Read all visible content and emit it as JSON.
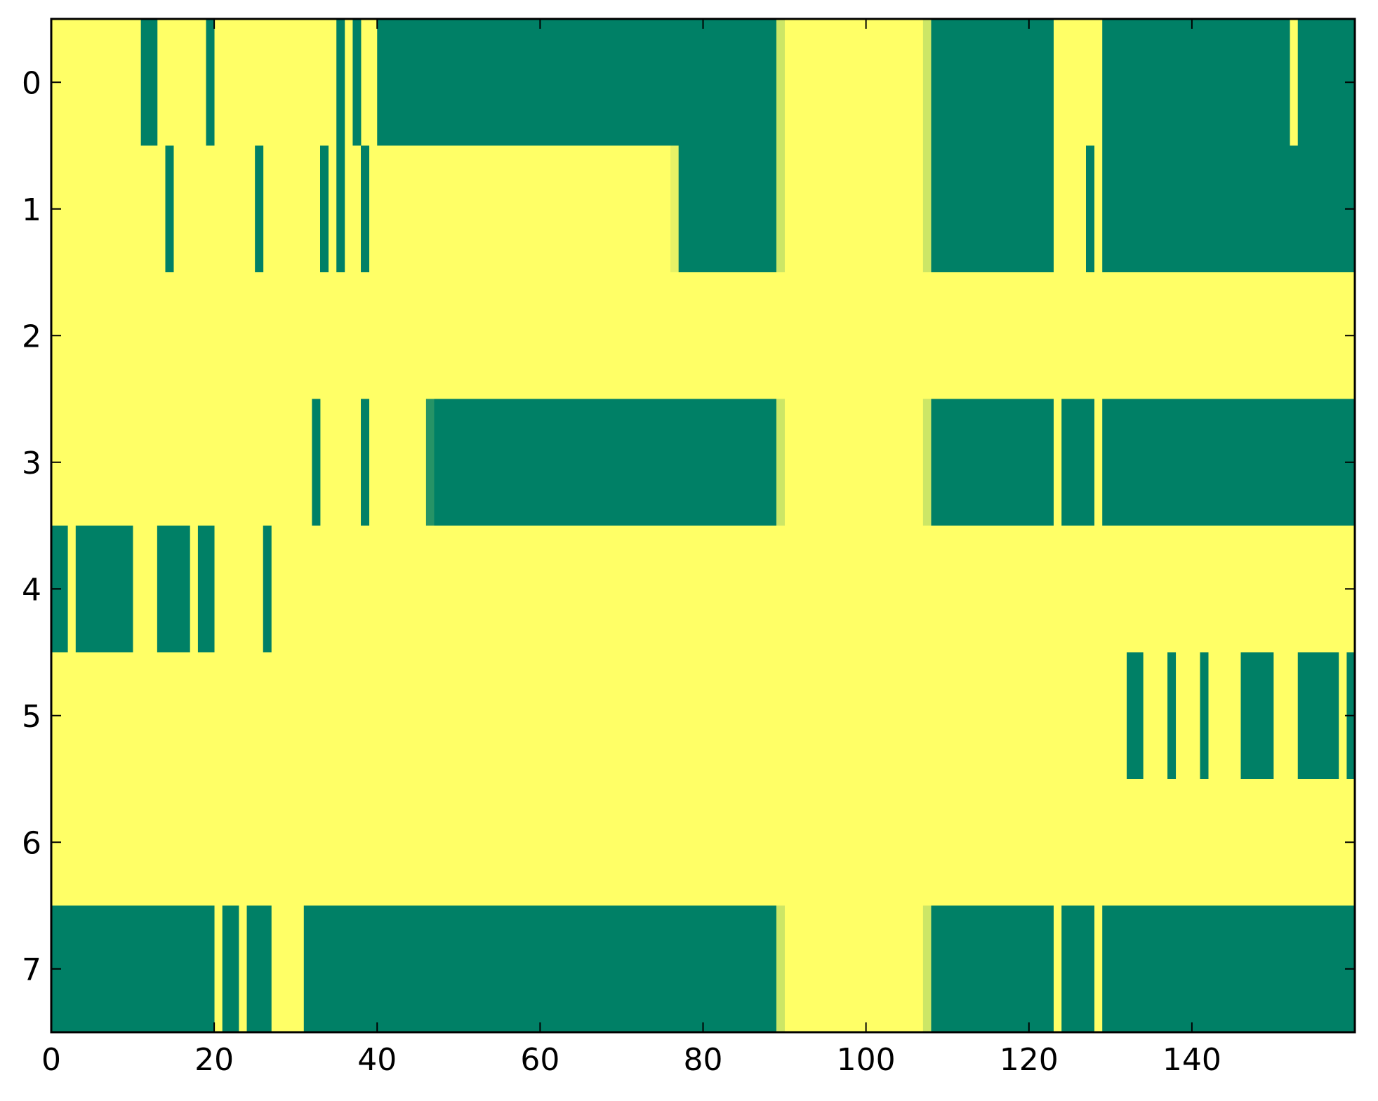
{
  "chart_data": {
    "type": "heatmap",
    "title": "",
    "xlabel": "",
    "ylabel": "",
    "x_ticks": [
      0,
      20,
      40,
      60,
      80,
      100,
      120,
      140
    ],
    "y_ticks": [
      0,
      1,
      2,
      3,
      4,
      5,
      6,
      7
    ],
    "x_tick_labels": [
      "0",
      "20",
      "40",
      "60",
      "80",
      "100",
      "120",
      "140"
    ],
    "y_tick_labels": [
      "0",
      "1",
      "2",
      "3",
      "4",
      "5",
      "6",
      "7"
    ],
    "xlim": [
      -0.5,
      159.5
    ],
    "ylim": [
      7.5,
      -0.5
    ],
    "n_rows": 8,
    "n_cols": 160,
    "grid": false,
    "colormap": "summer",
    "value_range": [
      0,
      1
    ],
    "colors": {
      "low": "#008066",
      "high": "#ffff66",
      "frame": "#000000",
      "background": "#ffffff"
    },
    "description_of_values": "Cells not listed in a row's segments have value 1 (yellow). Segments are [start_col, end_col, value] inclusive.",
    "rows": [
      {
        "row": 0,
        "segments": [
          [
            11,
            12,
            0
          ],
          [
            19,
            19,
            0
          ],
          [
            35,
            35,
            0
          ],
          [
            37,
            37,
            0
          ],
          [
            40,
            88,
            0
          ],
          [
            89,
            89,
            0.8
          ],
          [
            107,
            107,
            0.8
          ],
          [
            108,
            122,
            0
          ],
          [
            129,
            151,
            0
          ],
          [
            153,
            159,
            0
          ]
        ]
      },
      {
        "row": 1,
        "segments": [
          [
            14,
            14,
            0
          ],
          [
            25,
            25,
            0
          ],
          [
            33,
            33,
            0
          ],
          [
            35,
            35,
            0
          ],
          [
            38,
            38,
            0
          ],
          [
            76,
            76,
            0.9
          ],
          [
            77,
            88,
            0
          ],
          [
            89,
            89,
            0.8
          ],
          [
            107,
            107,
            0.8
          ],
          [
            108,
            122,
            0
          ],
          [
            127,
            127,
            0
          ],
          [
            129,
            159,
            0
          ]
        ]
      },
      {
        "row": 2,
        "segments": []
      },
      {
        "row": 3,
        "segments": [
          [
            32,
            32,
            0
          ],
          [
            38,
            38,
            0
          ],
          [
            46,
            46,
            0.15
          ],
          [
            47,
            88,
            0
          ],
          [
            89,
            89,
            0.8
          ],
          [
            107,
            107,
            0.8
          ],
          [
            108,
            122,
            0
          ],
          [
            124,
            127,
            0
          ],
          [
            129,
            159,
            0
          ]
        ]
      },
      {
        "row": 4,
        "segments": [
          [
            0,
            1,
            0
          ],
          [
            3,
            9,
            0
          ],
          [
            13,
            16,
            0
          ],
          [
            18,
            19,
            0
          ],
          [
            26,
            26,
            0
          ]
        ]
      },
      {
        "row": 5,
        "segments": [
          [
            132,
            133,
            0
          ],
          [
            137,
            137,
            0
          ],
          [
            141,
            141,
            0
          ],
          [
            146,
            149,
            0
          ],
          [
            153,
            157,
            0
          ],
          [
            159,
            159,
            0
          ]
        ]
      },
      {
        "row": 6,
        "segments": []
      },
      {
        "row": 7,
        "segments": [
          [
            0,
            19,
            0
          ],
          [
            21,
            22,
            0
          ],
          [
            24,
            26,
            0
          ],
          [
            31,
            88,
            0
          ],
          [
            89,
            89,
            0.8
          ],
          [
            107,
            107,
            0.8
          ],
          [
            108,
            122,
            0
          ],
          [
            124,
            127,
            0
          ],
          [
            129,
            159,
            0
          ]
        ]
      }
    ]
  }
}
